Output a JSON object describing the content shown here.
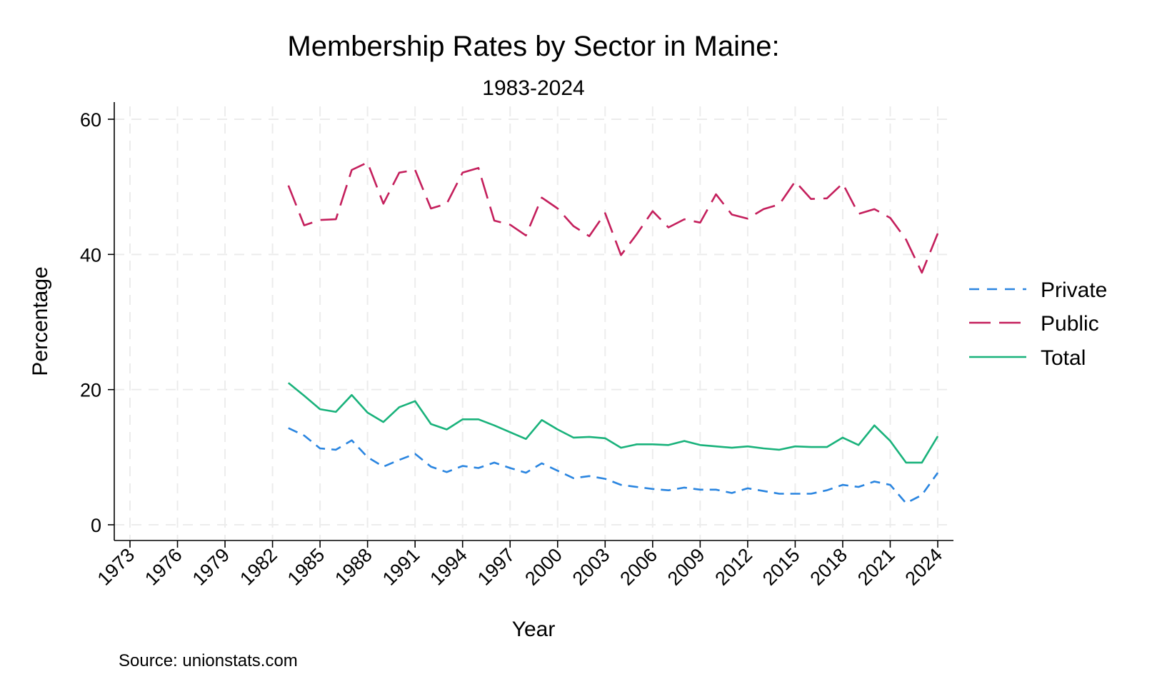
{
  "chart_data": {
    "type": "line",
    "title": "Membership Rates by Sector in Maine:",
    "subtitle": "1983-2024",
    "xlabel": "Year",
    "ylabel": "Percentage",
    "note": "Source: unionstats.com",
    "xlim": [
      1973,
      2024
    ],
    "ylim": [
      0,
      60
    ],
    "x_ticks": [
      1973,
      1976,
      1979,
      1982,
      1985,
      1988,
      1991,
      1994,
      1997,
      2000,
      2003,
      2006,
      2009,
      2012,
      2015,
      2018,
      2021,
      2024
    ],
    "y_ticks": [
      0,
      20,
      40,
      60
    ],
    "grid": true,
    "legend_position": "right",
    "x": [
      1983,
      1984,
      1985,
      1986,
      1987,
      1988,
      1989,
      1990,
      1991,
      1992,
      1993,
      1994,
      1995,
      1996,
      1997,
      1998,
      1999,
      2000,
      2001,
      2002,
      2003,
      2004,
      2005,
      2006,
      2007,
      2008,
      2009,
      2010,
      2011,
      2012,
      2013,
      2014,
      2015,
      2016,
      2017,
      2018,
      2019,
      2020,
      2021,
      2022,
      2023,
      2024
    ],
    "series": [
      {
        "name": "Private",
        "color": "#2a85e0",
        "dash": "short",
        "values": [
          14.3,
          13.2,
          11.3,
          11.1,
          12.5,
          10.0,
          8.6,
          9.6,
          10.5,
          8.6,
          7.8,
          8.7,
          8.4,
          9.2,
          8.4,
          7.7,
          9.1,
          8.0,
          6.9,
          7.2,
          6.8,
          5.9,
          5.6,
          5.3,
          5.1,
          5.5,
          5.2,
          5.2,
          4.7,
          5.4,
          5.0,
          4.6,
          4.6,
          4.6,
          5.1,
          5.9,
          5.6,
          6.4,
          5.9,
          3.2,
          4.4,
          7.7
        ]
      },
      {
        "name": "Public",
        "color": "#c41f5c",
        "dash": "long",
        "values": [
          50.2,
          44.3,
          45.1,
          45.2,
          52.5,
          53.6,
          47.5,
          52.1,
          52.5,
          46.8,
          47.5,
          52.1,
          52.8,
          45.0,
          44.4,
          42.8,
          48.4,
          46.8,
          44.2,
          42.7,
          46.1,
          39.9,
          43.0,
          46.4,
          44.0,
          45.2,
          44.7,
          48.9,
          45.9,
          45.3,
          46.7,
          47.4,
          50.8,
          48.2,
          48.3,
          50.5,
          46.0,
          46.7,
          45.4,
          42.2,
          37.3,
          43.1
        ]
      },
      {
        "name": "Total",
        "color": "#19b27b",
        "dash": "solid",
        "values": [
          21.0,
          19.1,
          17.1,
          16.7,
          19.2,
          16.6,
          15.2,
          17.4,
          18.3,
          14.9,
          14.1,
          15.6,
          15.6,
          14.7,
          13.7,
          12.7,
          15.5,
          14.1,
          12.9,
          13.0,
          12.8,
          11.4,
          11.9,
          11.9,
          11.8,
          12.4,
          11.8,
          11.6,
          11.4,
          11.6,
          11.3,
          11.1,
          11.6,
          11.5,
          11.5,
          12.9,
          11.8,
          14.7,
          12.4,
          9.2,
          9.2,
          13.1
        ]
      }
    ]
  }
}
